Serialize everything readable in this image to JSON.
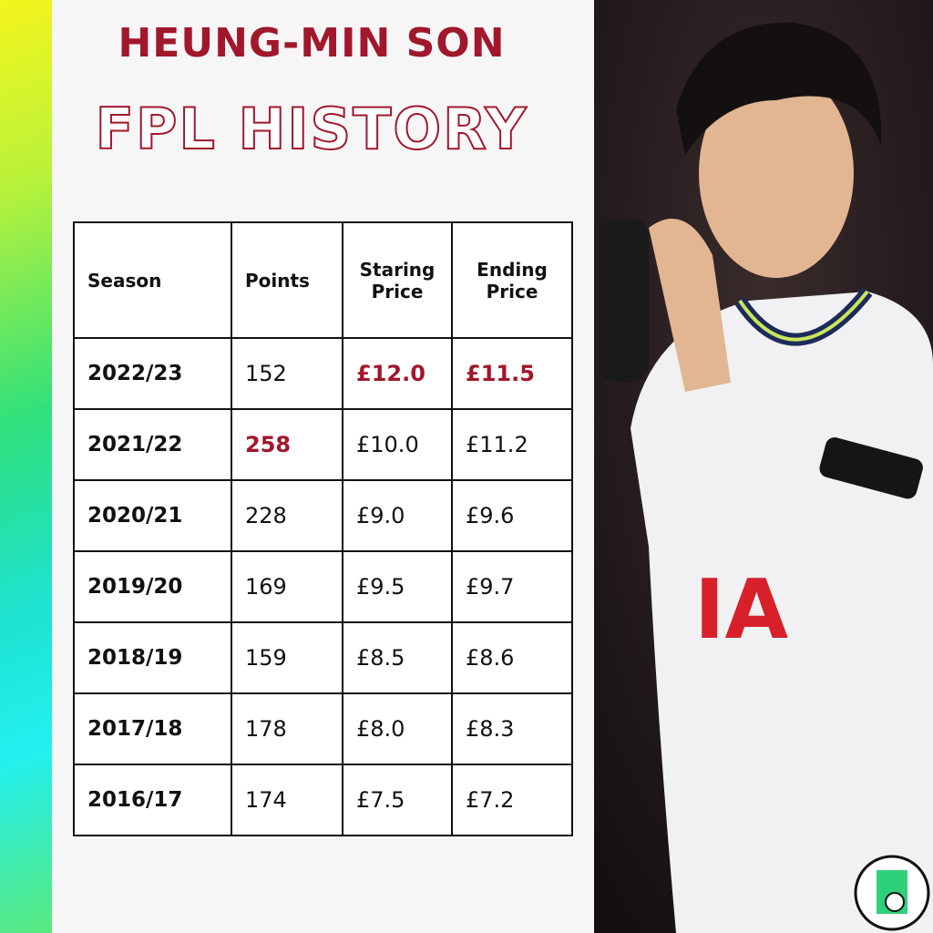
{
  "header": {
    "title": "HEUNG-MIN SON",
    "subtitle": "FPL HISTORY"
  },
  "table": {
    "columns": [
      "Season",
      "Points",
      "Staring Price",
      "Ending Price"
    ],
    "rows": [
      [
        "2022/23",
        "152",
        "£12.0",
        "£11.5"
      ],
      [
        "2021/22",
        "258",
        "£10.0",
        "£11.2"
      ],
      [
        "2020/21",
        "228",
        "£9.0",
        "£9.6"
      ],
      [
        "2019/20",
        "169",
        "£9.5",
        "£9.7"
      ],
      [
        "2018/19",
        "159",
        "£8.5",
        "£8.6"
      ],
      [
        "2017/18",
        "178",
        "£8.0",
        "£8.3"
      ],
      [
        "2016/17",
        "174",
        "£7.5",
        "£7.2"
      ]
    ]
  }
}
